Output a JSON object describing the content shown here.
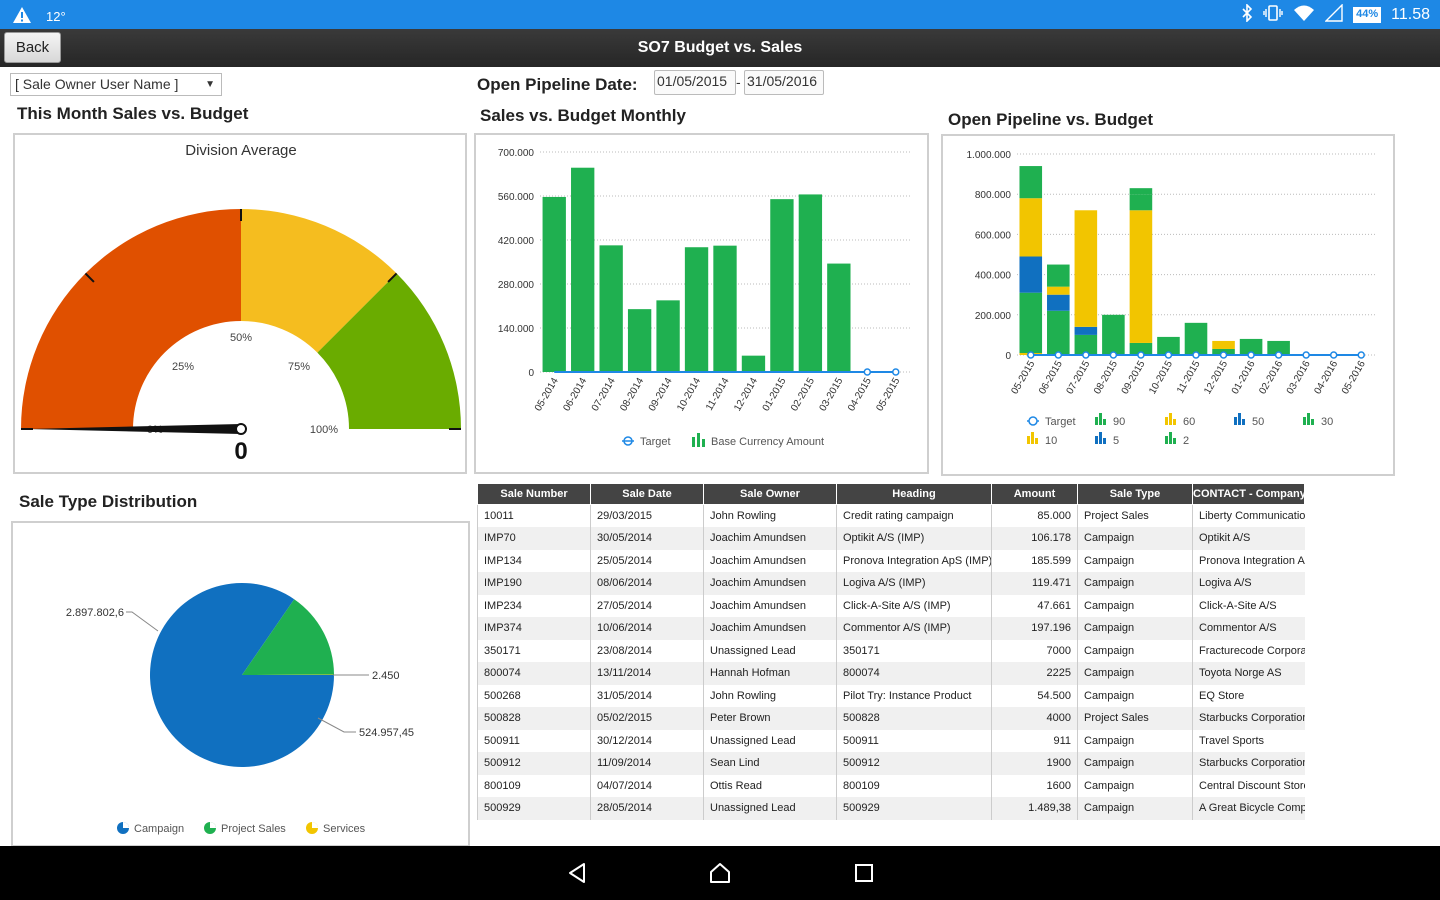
{
  "status": {
    "temp": "12°",
    "battery": "44%",
    "time": "11.58"
  },
  "app": {
    "title": "SO7 Budget vs. Sales",
    "back_label": "Back"
  },
  "filters": {
    "owner_select": "[ Sale Owner User Name ]",
    "pipeline_label": "Open Pipeline Date:",
    "date_from": "01/05/2015",
    "date_sep": "-",
    "date_to": "31/05/2016"
  },
  "sections": {
    "this_month": "This Month Sales vs. Budget",
    "monthly": "Sales vs. Budget Monthly",
    "pipeline": "Open Pipeline vs. Budget",
    "distribution": "Sale Type Distribution"
  },
  "colors": {
    "green": "#1fb050",
    "blue": "#1070c0",
    "yellow": "#f2c500",
    "red": "#e05000",
    "gauge_yellow": "#f5bd1f",
    "gauge_green": "#6aac00",
    "line": "#1e88e5"
  },
  "chart_data": [
    {
      "type": "gauge",
      "title": "Division Average",
      "ticks": [
        "0%",
        "25%",
        "50%",
        "75%",
        "100%"
      ],
      "value": 0,
      "value_label": "0"
    },
    {
      "type": "bar",
      "title": "",
      "categories": [
        "05-2014",
        "06-2014",
        "07-2014",
        "08-2014",
        "09-2014",
        "10-2014",
        "11-2014",
        "12-2014",
        "01-2015",
        "02-2015",
        "03-2015",
        "04-2015",
        "05-2015"
      ],
      "series": [
        {
          "name": "Target",
          "type": "line",
          "values": [
            0,
            0,
            0,
            0,
            0,
            0,
            0,
            0,
            0,
            0,
            0,
            0,
            0
          ]
        },
        {
          "name": "Base Currency Amount",
          "type": "bar",
          "values": [
            557000,
            650000,
            403000,
            200000,
            228000,
            397000,
            402000,
            52000,
            550000,
            565000,
            345000,
            0,
            0
          ]
        }
      ],
      "ylim": [
        0,
        700000
      ],
      "yticks": [
        "0",
        "140.000",
        "280.000",
        "420.000",
        "560.000",
        "700.000"
      ]
    },
    {
      "type": "bar",
      "stacked": true,
      "title": "",
      "categories": [
        "05-2015",
        "06-2015",
        "07-2015",
        "08-2015",
        "09-2015",
        "10-2015",
        "11-2015",
        "12-2015",
        "01-2016",
        "02-2016",
        "03-2016",
        "04-2016",
        "05-2016"
      ],
      "series": [
        {
          "name": "Target",
          "type": "line",
          "values": [
            0,
            0,
            0,
            0,
            0,
            0,
            0,
            0,
            0,
            0,
            0,
            0,
            0
          ]
        },
        {
          "name": "90",
          "values": [
            160000,
            110000,
            0,
            0,
            80000,
            0,
            0,
            0,
            0,
            0,
            0,
            0,
            0
          ]
        },
        {
          "name": "60",
          "values": [
            290000,
            40000,
            580000,
            0,
            660000,
            0,
            0,
            40000,
            0,
            0,
            0,
            0,
            0
          ]
        },
        {
          "name": "50",
          "values": [
            180000,
            80000,
            40000,
            0,
            0,
            0,
            0,
            0,
            0,
            0,
            0,
            0,
            0
          ]
        },
        {
          "name": "30",
          "values": [
            300000,
            220000,
            100000,
            200000,
            60000,
            90000,
            160000,
            30000,
            80000,
            70000,
            0,
            0,
            0
          ]
        },
        {
          "name": "10",
          "values": [
            10000,
            0,
            0,
            0,
            0,
            0,
            0,
            0,
            0,
            0,
            0,
            0,
            0
          ]
        },
        {
          "name": "5",
          "values": [
            0,
            0,
            0,
            0,
            0,
            0,
            0,
            0,
            0,
            0,
            0,
            0,
            0
          ]
        },
        {
          "name": "2",
          "values": [
            0,
            0,
            0,
            0,
            30000,
            0,
            0,
            0,
            0,
            0,
            0,
            0,
            0
          ]
        }
      ],
      "ylim": [
        0,
        1000000
      ],
      "yticks": [
        "0",
        "200.000",
        "400.000",
        "600.000",
        "800.000",
        "1.000.000"
      ]
    },
    {
      "type": "pie",
      "title": "",
      "slices": [
        {
          "name": "Campaign",
          "value": 2897802.6,
          "label": "2.897.802,6"
        },
        {
          "name": "Project Sales",
          "value": 524957.45,
          "label": "524.957,45"
        },
        {
          "name": "Services",
          "value": 2450,
          "label": "2.450"
        }
      ]
    }
  ],
  "table": {
    "headers": [
      "Sale Number",
      "Sale Date",
      "Sale Owner",
      "Heading",
      "Amount",
      "Sale Type",
      "CONTACT - Company"
    ],
    "rows": [
      [
        "10011",
        "29/03/2015",
        "John Rowling",
        "Credit rating campaign",
        "85.000",
        "Project Sales",
        "Liberty Communications"
      ],
      [
        "IMP70",
        "30/05/2014",
        "Joachim Amundsen",
        "Optikit A/S (IMP)",
        "106.178",
        "Campaign",
        "Optikit A/S"
      ],
      [
        "IMP134",
        "25/05/2014",
        "Joachim Amundsen",
        "Pronova Integration ApS (IMP)",
        "185.599",
        "Campaign",
        "Pronova Integration ApS"
      ],
      [
        "IMP190",
        "08/06/2014",
        "Joachim Amundsen",
        "Logiva A/S (IMP)",
        "119.471",
        "Campaign",
        "Logiva A/S"
      ],
      [
        "IMP234",
        "27/05/2014",
        "Joachim Amundsen",
        "Click-A-Site A/S (IMP)",
        "47.661",
        "Campaign",
        "Click-A-Site A/S"
      ],
      [
        "IMP374",
        "10/06/2014",
        "Joachim Amundsen",
        "Commentor A/S (IMP)",
        "197.196",
        "Campaign",
        "Commentor A/S"
      ],
      [
        "350171",
        "23/08/2014",
        "Unassigned Lead",
        "350171",
        "7000",
        "Campaign",
        "Fracturecode Corporation"
      ],
      [
        "800074",
        "13/11/2014",
        "Hannah Hofman",
        "800074",
        "2225",
        "Campaign",
        "Toyota Norge AS"
      ],
      [
        "500268",
        "31/05/2014",
        "John Rowling",
        "Pilot Try: Instance Product",
        "54.500",
        "Campaign",
        "EQ Store"
      ],
      [
        "500828",
        "05/02/2015",
        "Peter Brown",
        "500828",
        "4000",
        "Project Sales",
        "Starbucks Corporation"
      ],
      [
        "500911",
        "30/12/2014",
        "Unassigned Lead",
        "500911",
        "911",
        "Campaign",
        "Travel Sports"
      ],
      [
        "500912",
        "11/09/2014",
        "Sean Lind",
        "500912",
        "1900",
        "Campaign",
        "Starbucks Corporation"
      ],
      [
        "800109",
        "04/07/2014",
        "Ottis Read",
        "800109",
        "1600",
        "Campaign",
        "Central Discount Store"
      ],
      [
        "500929",
        "28/05/2014",
        "Unassigned Lead",
        "500929",
        "1.489,38",
        "Campaign",
        "A Great Bicycle Company"
      ]
    ]
  }
}
